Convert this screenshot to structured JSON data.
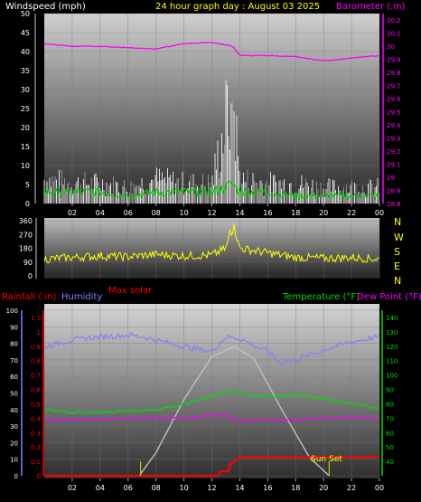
{
  "header": {
    "left": "Windspeed (mph)",
    "center": "24 hour graph day : August 03 2025",
    "right": "Barometer (.in)"
  },
  "panel_labels": {
    "rainfall": "Rainfall (.in)",
    "humidity": "Humidity",
    "max_solar": "Max solar",
    "temperature": "Temperature (°F)",
    "dew_point": "Dew Point (°F)"
  },
  "direction_letters": [
    "N",
    "W",
    "S",
    "E",
    "N"
  ],
  "annotations": {
    "sun_set": "Sun Set"
  },
  "colors": {
    "windspeed": "#FFFFFF",
    "gust": "#A0A0A0",
    "avg_wind": "#00CC00",
    "barometer": "#FF00FF",
    "direction": "#FFFF00",
    "rainfall": "#FF0000",
    "humidity": "#8080FF",
    "solar": "#C0C0C0",
    "temperature": "#00DD00",
    "dew_point": "#FF00FF",
    "daylight_marker": "#C8C800"
  },
  "chart_data": [
    {
      "type": "line",
      "name": "wind-barometer",
      "x_ticks": [
        "02",
        "04",
        "06",
        "08",
        "10",
        "12",
        "14",
        "16",
        "18",
        "20",
        "22",
        "00"
      ],
      "y_left": {
        "label": "Windspeed (mph)",
        "ticks": [
          0,
          5,
          10,
          15,
          20,
          25,
          30,
          35,
          40,
          45,
          50
        ],
        "range": [
          0,
          50
        ]
      },
      "y_right": {
        "label": "Barometer (.in)",
        "ticks": [
          "28.8",
          "28.9",
          "29",
          "29.1",
          "29.2",
          "29.3",
          "29.4",
          "29.5",
          "29.6",
          "29.7",
          "29.8",
          "29.9",
          "30",
          "30.1",
          "30.2"
        ],
        "range": [
          28.8,
          30.25
        ]
      },
      "series": [
        {
          "x": [
            0,
            2,
            4,
            6,
            8,
            10,
            12,
            13.5,
            14,
            16,
            18,
            20,
            22,
            24
          ],
          "y": [
            6,
            5,
            5,
            4,
            6,
            5,
            5,
            28,
            6,
            5,
            5,
            4,
            4,
            4
          ],
          "note": "wind gusts"
        },
        {
          "x": [
            0,
            2,
            4,
            6,
            8,
            10,
            12,
            13.5,
            14,
            16,
            18,
            20,
            22,
            24
          ],
          "y": [
            3,
            3,
            3,
            2,
            3,
            3,
            3,
            5,
            3,
            3,
            2,
            2,
            2,
            2
          ],
          "note": "average wind"
        },
        {
          "x": [
            0,
            2,
            4,
            6,
            8,
            10,
            12,
            13.5,
            14,
            16,
            18,
            20,
            22,
            24
          ],
          "y": [
            30.02,
            30.0,
            30.0,
            29.99,
            29.98,
            30.02,
            30.03,
            30.0,
            29.93,
            29.93,
            29.92,
            29.89,
            29.91,
            29.93
          ],
          "note": "barometer"
        }
      ]
    },
    {
      "type": "line",
      "name": "wind-direction",
      "x_ticks": [
        "02",
        "04",
        "06",
        "08",
        "10",
        "12",
        "14",
        "16",
        "18",
        "20",
        "22",
        "00"
      ],
      "y_left": {
        "ticks": [
          0,
          90,
          180,
          270,
          360
        ],
        "range": [
          0,
          360
        ]
      },
      "series": [
        {
          "x": [
            0,
            2,
            4,
            6,
            8,
            10,
            12,
            13,
            13.5,
            14,
            16,
            18,
            20,
            22,
            24
          ],
          "y": [
            110,
            120,
            130,
            125,
            140,
            130,
            135,
            180,
            330,
            180,
            150,
            120,
            115,
            120,
            110
          ],
          "note": "direction"
        }
      ]
    },
    {
      "type": "line",
      "name": "rain-humidity-temp",
      "x_ticks": [
        "02",
        "04",
        "06",
        "08",
        "10",
        "12",
        "14",
        "16",
        "18",
        "20",
        "22",
        "00"
      ],
      "y_left": {
        "label": "Humidity",
        "ticks": [
          0,
          10,
          20,
          30,
          40,
          50,
          60,
          70,
          80,
          90,
          100
        ],
        "range": [
          0,
          100
        ]
      },
      "y_rain": {
        "label": "Rainfall (.in)",
        "ticks": [
          "0",
          "0.1",
          "0.2",
          "0.3",
          "0.4",
          "0.5",
          "0.6",
          "0.7",
          "0.8",
          "0.9",
          "1",
          "1.1"
        ],
        "range": [
          0,
          1.15
        ]
      },
      "y_right": {
        "label": "Temperature (°F)",
        "ticks": [
          40,
          50,
          60,
          70,
          80,
          90,
          100,
          110,
          120,
          130,
          140
        ],
        "range": [
          30,
          145
        ]
      },
      "series": [
        {
          "x": [
            0,
            2,
            4,
            6,
            7,
            8,
            10,
            12,
            13,
            14,
            16,
            17,
            18,
            20,
            22,
            24
          ],
          "y": [
            78,
            82,
            84,
            85,
            84,
            82,
            78,
            75,
            84,
            83,
            75,
            68,
            70,
            76,
            81,
            84
          ],
          "note": "humidity"
        },
        {
          "x": [
            0,
            2,
            4,
            6,
            8,
            10,
            12,
            13,
            14,
            16,
            18,
            20,
            22,
            24
          ],
          "y": [
            76,
            74,
            74,
            75,
            76,
            80,
            85,
            88,
            87,
            85,
            86,
            84,
            80,
            77
          ],
          "note": "temperature"
        },
        {
          "x": [
            0,
            2,
            4,
            6,
            8,
            10,
            12,
            13,
            14,
            16,
            18,
            20,
            22,
            24
          ],
          "y": [
            69,
            69,
            69,
            70,
            70,
            70,
            72,
            72,
            68,
            69,
            69,
            70,
            71,
            70
          ],
          "note": "dew point"
        },
        {
          "x": [
            0,
            12.5,
            12.6,
            13.2,
            13.3,
            14,
            24
          ],
          "y": [
            0,
            0,
            0.03,
            0.03,
            0.08,
            0.13,
            0.13
          ],
          "note": "rainfall"
        },
        {
          "x": [
            6.8,
            8,
            10,
            12,
            13.6,
            15,
            17,
            19,
            20.4
          ],
          "y": [
            0,
            14,
            46,
            72,
            78,
            71,
            40,
            11,
            0
          ],
          "note": "max solar (% of humidity scale)"
        }
      ]
    }
  ]
}
